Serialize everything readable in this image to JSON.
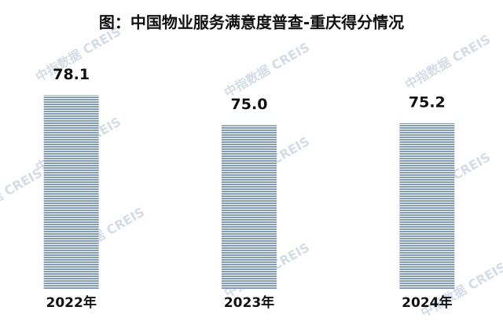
{
  "chart_data": {
    "type": "bar",
    "title": "图：中国物业服务满意度普查-重庆得分情况",
    "categories": [
      "2022年",
      "2023年",
      "2024年"
    ],
    "values": [
      78.1,
      75.0,
      75.2
    ],
    "value_labels": [
      "78.1",
      "75.0",
      "75.2"
    ],
    "color": "#7f9cc0",
    "ylim": [
      58,
      80
    ],
    "watermark": "中指数据 CREIS"
  }
}
